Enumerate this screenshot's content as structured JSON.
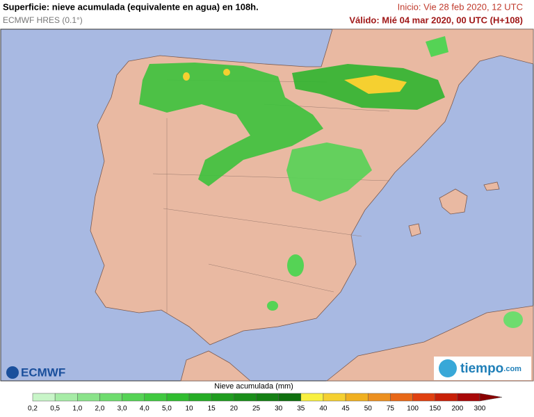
{
  "header": {
    "title": "Superficie: nieve acumulada (equivalente en agua) en 108h.",
    "model": "ECMWF HRES (0.1°)",
    "init": "Inicio: Vie 28 feb 2020, 12 UTC",
    "valid": "Válido: Mié 04 mar 2020, 00 UTC (H+108)"
  },
  "logos": {
    "left": "ECMWF",
    "right": "tiempo",
    "right_suffix": ".com"
  },
  "legend": {
    "title": "Nieve acumulada (mm)",
    "labels": [
      "0,2",
      "0,5",
      "1,0",
      "2,0",
      "3,0",
      "4,0",
      "5,0",
      "10",
      "15",
      "20",
      "25",
      "30",
      "35",
      "40",
      "45",
      "50",
      "75",
      "100",
      "150",
      "200",
      "300"
    ],
    "colors": [
      "#c8f5c8",
      "#a6eca6",
      "#8ae38a",
      "#6edc6e",
      "#55d355",
      "#40c940",
      "#30bd30",
      "#26ad26",
      "#1f9d1f",
      "#198e19",
      "#148014",
      "#0f700f",
      "#f8f040",
      "#f5d030",
      "#f0b020",
      "#ec9020",
      "#e86818",
      "#e04010",
      "#c82008",
      "#a80808"
    ],
    "arrow_color": "#8a0000"
  }
}
